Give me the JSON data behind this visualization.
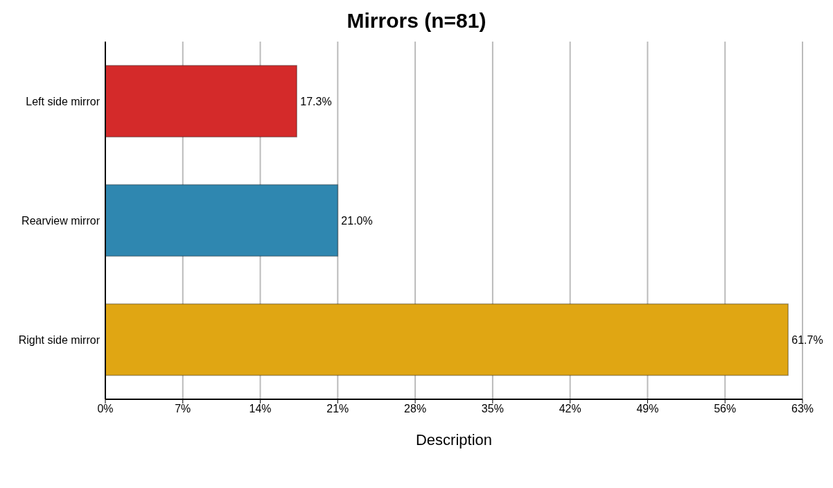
{
  "chart_data": {
    "type": "bar",
    "orientation": "horizontal",
    "title": "Mirrors (n=81)",
    "xlabel": "Description",
    "categories": [
      "Left side mirror",
      "Rearview mirror",
      "Right side mirror"
    ],
    "values": [
      17.3,
      21.0,
      61.7
    ],
    "colors": [
      "#d42a2a",
      "#2f87b0",
      "#e0a613"
    ],
    "value_labels": [
      "17.3%",
      "21.0%",
      "61.7%"
    ],
    "xlim": [
      0,
      63
    ],
    "xticks": [
      {
        "value": 0,
        "label": "0%"
      },
      {
        "value": 7,
        "label": "7%"
      },
      {
        "value": 14,
        "label": "14%"
      },
      {
        "value": 21,
        "label": "21%"
      },
      {
        "value": 28,
        "label": "28%"
      },
      {
        "value": 35,
        "label": "35%"
      },
      {
        "value": 42,
        "label": "42%"
      },
      {
        "value": 49,
        "label": "49%"
      },
      {
        "value": 56,
        "label": "56%"
      },
      {
        "value": 63,
        "label": "63%"
      }
    ],
    "grid": "x"
  }
}
